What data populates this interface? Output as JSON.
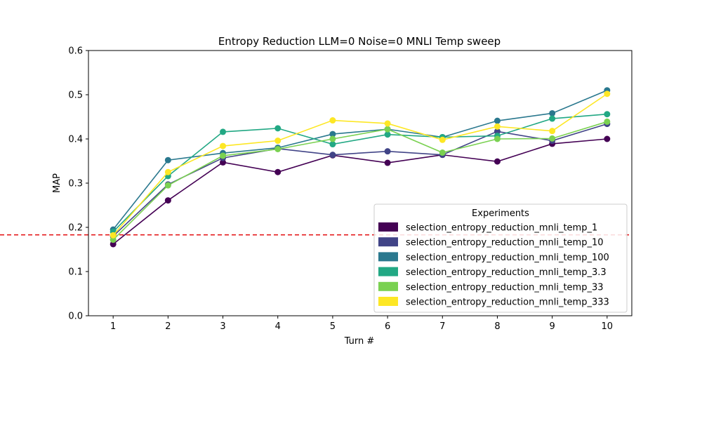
{
  "chart_data": {
    "type": "line",
    "title": "Entropy Reduction LLM=0 Noise=0 MNLI Temp sweep",
    "xlabel": "Turn #",
    "ylabel": "MAP",
    "x": [
      1,
      2,
      3,
      4,
      5,
      6,
      7,
      8,
      9,
      10
    ],
    "xlim": [
      0.55,
      10.45
    ],
    "ylim": [
      0.0,
      0.6
    ],
    "yticks": [
      0.0,
      0.1,
      0.2,
      0.3,
      0.4,
      0.5,
      0.6
    ],
    "ytick_labels": [
      "0.0",
      "0.1",
      "0.2",
      "0.3",
      "0.4",
      "0.5",
      "0.6"
    ],
    "xtick_labels": [
      "1",
      "2",
      "3",
      "4",
      "5",
      "6",
      "7",
      "8",
      "9",
      "10"
    ],
    "grid": false,
    "baseline": {
      "y": 0.183,
      "color": "#e41a1c",
      "style": "dashed"
    },
    "legend": {
      "title": "Experiments",
      "placement": "lower-right"
    },
    "series": [
      {
        "name": "selection_entropy_reduction_mnli_temp_1",
        "color": "#440154",
        "values": [
          0.162,
          0.261,
          0.347,
          0.325,
          0.363,
          0.346,
          0.364,
          0.349,
          0.389,
          0.4
        ]
      },
      {
        "name": "selection_entropy_reduction_mnli_temp_10",
        "color": "#414487",
        "values": [
          0.18,
          0.297,
          0.357,
          0.378,
          0.364,
          0.372,
          0.364,
          0.417,
          0.396,
          0.434
        ]
      },
      {
        "name": "selection_entropy_reduction_mnli_temp_100",
        "color": "#2a788e",
        "values": [
          0.195,
          0.352,
          0.368,
          0.38,
          0.411,
          0.422,
          0.404,
          0.441,
          0.458,
          0.51
        ]
      },
      {
        "name": "selection_entropy_reduction_mnli_temp_3.3",
        "color": "#22a884",
        "values": [
          0.19,
          0.316,
          0.416,
          0.424,
          0.388,
          0.41,
          0.404,
          0.407,
          0.446,
          0.456
        ]
      },
      {
        "name": "selection_entropy_reduction_mnli_temp_33",
        "color": "#7ad151",
        "values": [
          0.172,
          0.295,
          0.362,
          0.377,
          0.4,
          0.422,
          0.369,
          0.4,
          0.401,
          0.439
        ]
      },
      {
        "name": "selection_entropy_reduction_mnli_temp_333",
        "color": "#fde725",
        "values": [
          0.182,
          0.325,
          0.384,
          0.396,
          0.442,
          0.435,
          0.398,
          0.428,
          0.418,
          0.502
        ]
      }
    ]
  }
}
